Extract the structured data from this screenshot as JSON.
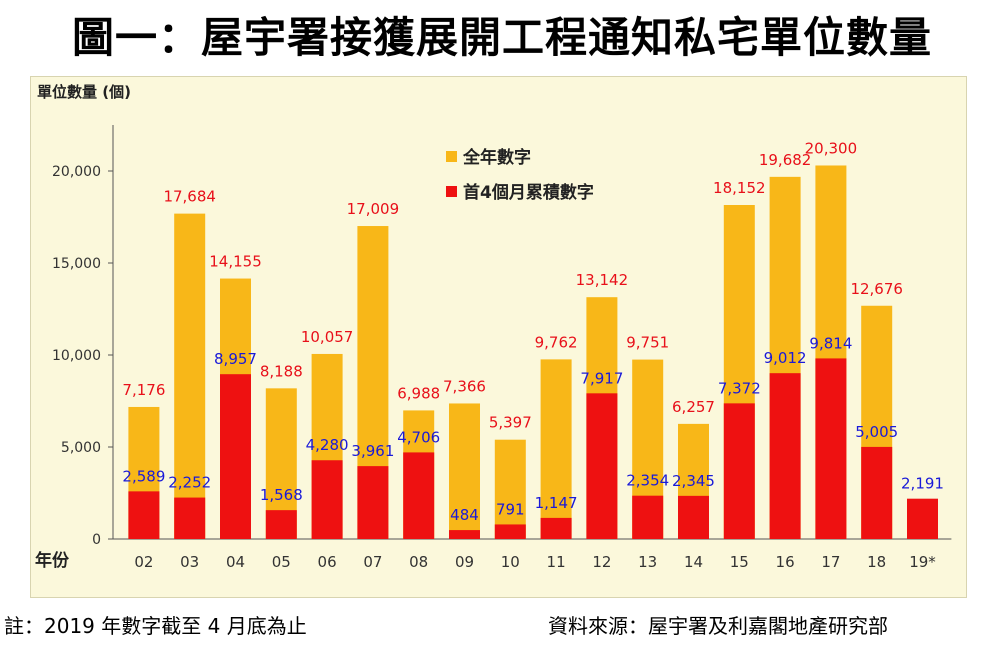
{
  "title": "圖一：屋宇署接獲展開工程通知私宅單位數量",
  "note": "註：2019 年數字截至 4 月底為止",
  "source": "資料來源：屋宇署及利嘉閣地產研究部",
  "chart_data": {
    "type": "bar",
    "ylabel": "單位數量 (個)",
    "xlabel": "年份",
    "categories": [
      "02",
      "03",
      "04",
      "05",
      "06",
      "07",
      "08",
      "09",
      "10",
      "11",
      "12",
      "13",
      "14",
      "15",
      "16",
      "17",
      "18",
      "19*"
    ],
    "ylim": [
      0,
      22500
    ],
    "yticks": [
      "0",
      "5,000",
      "10,000",
      "15,000",
      "20,000"
    ],
    "ytick_values": [
      0,
      5000,
      10000,
      15000,
      20000
    ],
    "grid": false,
    "legend_position": "top-center",
    "series": [
      {
        "name": "全年數字",
        "color": "#f8b718",
        "values": [
          7176,
          17684,
          14155,
          8188,
          10057,
          17009,
          6988,
          7366,
          5397,
          9762,
          13142,
          9751,
          6257,
          18152,
          19682,
          20300,
          12676,
          null
        ],
        "labels": [
          "7,176",
          "17,684",
          "14,155",
          "8,188",
          "10,057",
          "17,009",
          "6,988",
          "7,366",
          "5,397",
          "9,762",
          "13,142",
          "9,751",
          "6,257",
          "18,152",
          "19,682",
          "20,300",
          "12,676",
          ""
        ]
      },
      {
        "name": "首4個月累積數字",
        "color": "#ee1111",
        "values": [
          2589,
          2252,
          8957,
          1568,
          4280,
          3961,
          4706,
          484,
          791,
          1147,
          7917,
          2354,
          2345,
          7372,
          9012,
          9814,
          5005,
          2191
        ],
        "labels": [
          "2,589",
          "2,252",
          "8,957",
          "1,568",
          "4,280",
          "3,961",
          "4,706",
          "484",
          "791",
          "1,147",
          "7,917",
          "2,354",
          "2,345",
          "7,372",
          "9,012",
          "9,814",
          "5,005",
          "2,191"
        ]
      }
    ],
    "label_colors": {
      "total": "#e8101a",
      "ytd": "#1a1ad8"
    }
  }
}
